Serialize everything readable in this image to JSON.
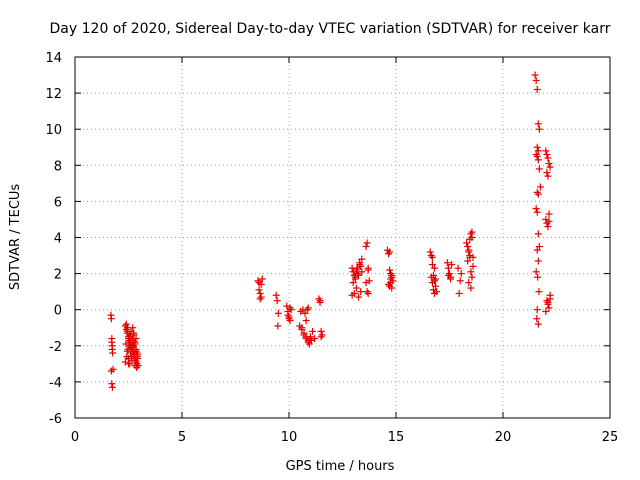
{
  "chart_data": {
    "type": "scatter",
    "title": "Day 120 of 2020, Sidereal Day-to-day VTEC variation (SDTVAR) for receiver karr",
    "xlabel": "GPS time / hours",
    "ylabel": "SDTVAR / TECUs",
    "xlim": [
      0,
      25
    ],
    "ylim": [
      -6,
      14
    ],
    "xticks": [
      0,
      5,
      10,
      15,
      20,
      25
    ],
    "yticks": [
      -6,
      -4,
      -2,
      0,
      2,
      4,
      6,
      8,
      10,
      12,
      14
    ],
    "grid": true,
    "marker": "+",
    "series": [
      {
        "name": "SDTVAR",
        "color": "#e60000",
        "x": [
          1.68,
          1.7,
          1.72,
          1.74,
          1.76,
          1.78,
          1.7,
          1.72,
          1.75,
          1.72,
          1.74,
          2.35,
          2.4,
          2.45,
          2.5,
          2.55,
          2.6,
          2.65,
          2.7,
          2.75,
          2.8,
          2.85,
          2.9,
          2.95,
          2.4,
          2.45,
          2.5,
          2.55,
          2.6,
          2.65,
          2.7,
          2.75,
          2.8,
          2.85,
          2.9,
          2.35,
          2.42,
          2.48,
          2.52,
          2.58,
          2.62,
          2.68,
          2.72,
          2.78,
          2.82,
          2.88,
          2.92,
          2.38,
          2.44,
          2.5,
          2.56,
          2.62,
          2.68,
          2.74,
          2.8,
          2.86,
          2.92,
          2.45,
          2.55,
          2.65,
          2.75,
          2.85,
          2.5,
          2.6,
          2.7,
          2.8,
          2.9,
          8.55,
          8.6,
          8.65,
          8.7,
          8.75,
          8.6,
          8.65,
          8.7,
          9.4,
          9.45,
          9.5,
          9.48,
          9.9,
          9.95,
          10.0,
          10.05,
          10.1,
          9.95,
          10.0,
          10.05,
          10.5,
          10.6,
          10.7,
          10.8,
          10.9,
          11.0,
          11.1,
          11.2,
          10.55,
          10.65,
          10.75,
          10.85,
          10.95,
          11.05,
          10.6,
          10.7,
          10.8,
          10.9,
          11.0,
          10.8,
          10.9,
          11.4,
          11.45,
          11.5,
          11.55,
          11.45,
          11.5,
          12.95,
          13.0,
          13.05,
          13.1,
          13.15,
          13.2,
          13.25,
          13.3,
          13.35,
          13.4,
          12.95,
          13.05,
          13.15,
          13.25,
          13.35,
          13.0,
          13.1,
          13.2,
          13.3,
          13.4,
          13.6,
          13.65,
          13.7,
          13.75,
          13.65,
          13.7,
          13.6,
          13.7,
          14.6,
          14.65,
          14.7,
          14.75,
          14.8,
          14.85,
          14.65,
          14.7,
          14.75,
          14.8,
          14.7,
          14.75,
          14.8,
          16.6,
          16.65,
          16.7,
          16.75,
          16.8,
          16.85,
          16.9,
          16.65,
          16.7,
          16.75,
          16.8,
          16.85,
          16.7,
          16.8,
          17.4,
          17.45,
          17.5,
          17.55,
          17.6,
          17.45,
          17.55,
          17.9,
          17.95,
          18.0,
          18.05,
          18.3,
          18.35,
          18.4,
          18.45,
          18.5,
          18.55,
          18.6,
          18.35,
          18.4,
          18.45,
          18.5,
          18.55,
          18.4,
          18.5,
          18.6,
          18.45,
          18.55,
          21.5,
          21.55,
          21.6,
          21.65,
          21.7,
          21.6,
          21.65,
          21.55,
          21.6,
          21.65,
          21.7,
          21.75,
          21.6,
          21.65,
          21.55,
          21.6,
          21.65,
          21.7,
          21.6,
          21.65,
          21.55,
          21.62,
          21.68,
          21.6,
          21.65,
          21.58,
          22.0,
          22.05,
          22.1,
          22.15,
          22.2,
          22.05,
          22.1,
          22.15,
          22.0,
          22.05,
          22.1,
          22.15,
          22.2,
          22.05,
          22.1,
          22.15,
          22.0,
          22.1,
          22.2
        ],
        "y": [
          -0.3,
          -0.5,
          -1.6,
          -2.2,
          -2.4,
          -3.3,
          -3.4,
          -4.1,
          -4.3,
          -1.8,
          -2.0,
          -0.9,
          -1.1,
          -1.3,
          -1.5,
          -1.7,
          -1.9,
          -2.1,
          -2.3,
          -2.5,
          -2.7,
          -2.9,
          -3.0,
          -3.1,
          -0.8,
          -1.2,
          -1.6,
          -2.0,
          -2.4,
          -2.8,
          -1.0,
          -1.4,
          -1.8,
          -2.2,
          -2.6,
          -2.9,
          -2.6,
          -2.2,
          -1.8,
          -1.5,
          -1.2,
          -1.6,
          -2.0,
          -2.4,
          -2.8,
          -3.2,
          -2.5,
          -1.9,
          -2.3,
          -2.7,
          -3.0,
          -2.1,
          -1.7,
          -1.3,
          -1.9,
          -2.3,
          -2.7,
          -1.0,
          -1.4,
          -2.6,
          -2.0,
          -1.6,
          -3.0,
          -2.2,
          -1.8,
          -3.1,
          -2.4,
          1.6,
          1.5,
          0.9,
          0.7,
          1.7,
          1.1,
          0.6,
          1.4,
          0.8,
          0.5,
          -0.2,
          -0.9,
          0.2,
          -0.1,
          -0.4,
          -0.6,
          0.0,
          -0.3,
          -0.5,
          0.1,
          -0.9,
          -1.1,
          -1.4,
          -1.6,
          -1.8,
          -1.5,
          -1.2,
          -1.6,
          -0.1,
          0.0,
          -0.2,
          0.0,
          -1.9,
          -1.7,
          -1.0,
          -1.3,
          -1.5,
          -1.7,
          -1.6,
          -0.6,
          0.1,
          0.6,
          0.4,
          -1.2,
          -1.4,
          0.5,
          -1.5,
          2.3,
          2.1,
          1.9,
          1.8,
          2.2,
          2.0,
          1.9,
          2.6,
          2.4,
          2.1,
          0.8,
          0.9,
          1.2,
          0.7,
          1.0,
          1.5,
          1.7,
          2.3,
          2.5,
          2.8,
          3.5,
          3.7,
          2.3,
          1.6,
          1.0,
          0.9,
          1.5,
          2.2,
          3.3,
          3.1,
          3.2,
          2.0,
          1.8,
          1.6,
          1.4,
          1.3,
          1.5,
          1.9,
          2.2,
          1.7,
          1.2,
          3.2,
          3.0,
          2.9,
          1.9,
          1.6,
          1.3,
          1.0,
          1.8,
          1.5,
          1.1,
          0.9,
          1.7,
          2.5,
          2.3,
          2.6,
          2.3,
          2.0,
          1.8,
          2.5,
          1.9,
          1.7,
          2.3,
          0.9,
          1.6,
          2.0,
          3.7,
          3.5,
          3.2,
          3.9,
          4.2,
          4.0,
          2.9,
          2.7,
          3.3,
          3.0,
          2.1,
          1.8,
          1.5,
          1.2,
          2.4,
          2.9,
          4.3,
          13.0,
          12.7,
          12.2,
          10.3,
          10.0,
          9.0,
          8.8,
          8.6,
          8.5,
          8.3,
          7.8,
          6.8,
          6.5,
          6.4,
          5.6,
          5.4,
          4.2,
          3.5,
          3.3,
          2.7,
          2.1,
          1.8,
          1.0,
          0.0,
          -0.8,
          -0.5,
          8.8,
          8.6,
          8.4,
          8.1,
          7.9,
          7.6,
          7.4,
          5.3,
          5.0,
          4.8,
          4.6,
          4.9,
          0.8,
          0.5,
          0.3,
          0.1,
          -0.1,
          0.4,
          0.6
        ]
      }
    ]
  }
}
